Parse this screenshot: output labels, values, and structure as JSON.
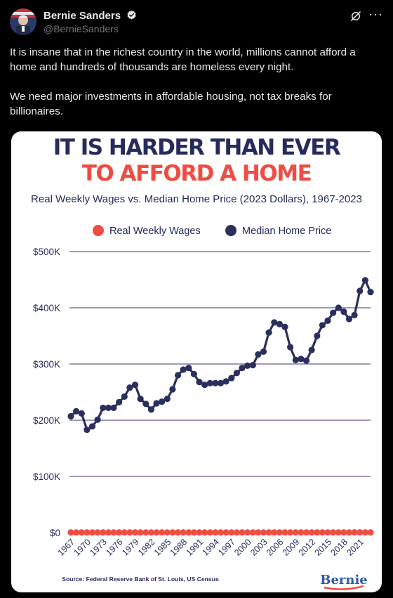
{
  "author": {
    "name": "Bernie Sanders",
    "handle": "@BernieSanders",
    "verified": true
  },
  "tweet_text": "It is insane that in the richest country in the world, millions cannot afford a home and hundreds of thousands are homeless every night.\n\nWe need major investments in affordable housing, not tax breaks for billionaires.",
  "icons": [
    "verified-badge-icon",
    "grok-icon",
    "more-icon"
  ],
  "colors": {
    "headline_navy": "#252b5c",
    "headline_red": "#ef4c42",
    "wages": "#ef4c42",
    "home_price": "#2a2f5c"
  },
  "chart_data": {
    "type": "line",
    "headline_line1": "IT IS HARDER THAN EVER",
    "headline_line2": "TO AFFORD A HOME",
    "title": "Real Weekly Wages vs. Median Home Price (2023 Dollars), 1967-2023",
    "source": "Source: Federal Reserve Bank of St. Louis, US Census",
    "logo": "Bernie",
    "legend_position": "top",
    "grid": true,
    "ylim": [
      0,
      500000
    ],
    "y_ticks": [
      0,
      100000,
      200000,
      300000,
      400000,
      500000
    ],
    "y_tick_labels": [
      "$0",
      "$100K",
      "$200K",
      "$300K",
      "$400K",
      "$500K"
    ],
    "x_tick_labels": [
      "1967",
      "1970",
      "1973",
      "1976",
      "1979",
      "1982",
      "1985",
      "1988",
      "1991",
      "1994",
      "1997",
      "2000",
      "2003",
      "2006",
      "2009",
      "2012",
      "2015",
      "2018",
      "2021"
    ],
    "x": [
      1967,
      1968,
      1969,
      1970,
      1971,
      1972,
      1973,
      1974,
      1975,
      1976,
      1977,
      1978,
      1979,
      1980,
      1981,
      1982,
      1983,
      1984,
      1985,
      1986,
      1987,
      1988,
      1989,
      1990,
      1991,
      1992,
      1993,
      1994,
      1995,
      1996,
      1997,
      1998,
      1999,
      2000,
      2001,
      2002,
      2003,
      2004,
      2005,
      2006,
      2007,
      2008,
      2009,
      2010,
      2011,
      2012,
      2013,
      2014,
      2015,
      2016,
      2017,
      2018,
      2019,
      2020,
      2021,
      2022,
      2023
    ],
    "series": [
      {
        "name": "Real Weekly Wages",
        "values": [
          370,
          375,
          380,
          375,
          380,
          390,
          385,
          375,
          370,
          375,
          380,
          372,
          365,
          350,
          345,
          348,
          352,
          355,
          360,
          362,
          360,
          362,
          360,
          355,
          352,
          352,
          352,
          355,
          356,
          360,
          365,
          372,
          378,
          380,
          383,
          388,
          390,
          388,
          388,
          390,
          392,
          396,
          410,
          410,
          404,
          402,
          402,
          402,
          405,
          410,
          412,
          414,
          420,
          450,
          440,
          425,
          430
        ]
      },
      {
        "name": "Median Home Price",
        "values": [
          207000,
          216000,
          212000,
          183000,
          189000,
          201000,
          222000,
          222000,
          222000,
          232000,
          242000,
          258000,
          263000,
          238000,
          229000,
          219000,
          230000,
          233000,
          238000,
          255000,
          280000,
          290000,
          293000,
          282000,
          268000,
          263000,
          266000,
          266000,
          266000,
          269000,
          275000,
          284000,
          293000,
          297000,
          298000,
          317000,
          322000,
          356000,
          374000,
          371000,
          366000,
          330000,
          307000,
          309000,
          306000,
          325000,
          350000,
          369000,
          377000,
          391000,
          400000,
          393000,
          380000,
          387000,
          430000,
          449000,
          428000
        ]
      }
    ]
  }
}
